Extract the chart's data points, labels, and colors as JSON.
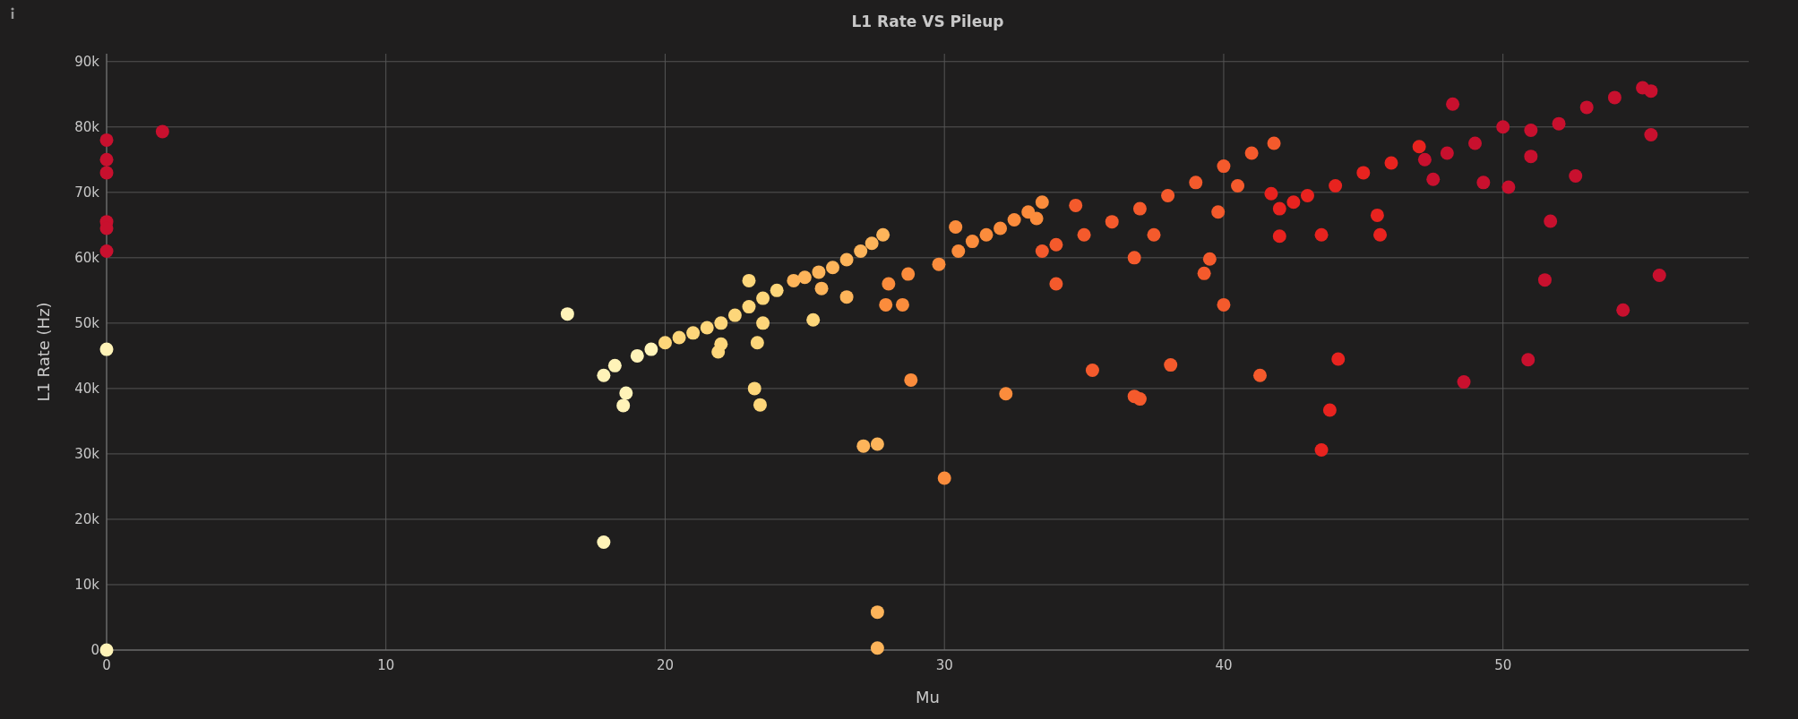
{
  "chart_data": {
    "type": "scatter",
    "title": "L1 Rate VS Pileup",
    "xlabel": "Mu",
    "ylabel": "L1 Rate (Hz)",
    "xlim": [
      0,
      58.8
    ],
    "xticks": [
      0,
      10,
      20,
      30,
      40,
      50
    ],
    "ylim": [
      0,
      91200
    ],
    "yticks": [
      0,
      {
        "value": 10000,
        "label": "10k"
      },
      {
        "value": 20000,
        "label": "20k"
      },
      {
        "value": 30000,
        "label": "30k"
      },
      {
        "value": 40000,
        "label": "40k"
      },
      {
        "value": 50000,
        "label": "50k"
      },
      {
        "value": 60000,
        "label": "60k"
      },
      {
        "value": 70000,
        "label": "70k"
      },
      {
        "value": 80000,
        "label": "80k"
      },
      {
        "value": 90000,
        "label": "90k"
      }
    ],
    "grid": true,
    "marker": "circle",
    "series": [
      {
        "color": "#fff3b8",
        "x": [
          0,
          0,
          16.5,
          17.8,
          17.8,
          18.2,
          18.6,
          18.5,
          19,
          19.5
        ],
        "values": [
          46000,
          0,
          51400,
          16500,
          42000,
          43500,
          39300,
          37400,
          45000,
          46000
        ]
      },
      {
        "color": "#fdd67a",
        "x": [
          20,
          20.5,
          21,
          21.5,
          22,
          22.5,
          23,
          23.5,
          24,
          21.9,
          22,
          23.2,
          23.4,
          23.3,
          23.5,
          23,
          25.3
        ],
        "values": [
          47000,
          47800,
          48500,
          49300,
          50000,
          51200,
          52500,
          53800,
          55000,
          45600,
          46800,
          40000,
          37500,
          47000,
          50000,
          56500,
          50500
        ]
      },
      {
        "color": "#fdb45a",
        "x": [
          24.6,
          25,
          25.5,
          26,
          26.5,
          27,
          27.4,
          27.8,
          27.1,
          27.6,
          27.6,
          27.6,
          26.5,
          25.6
        ],
        "values": [
          56500,
          57000,
          57800,
          58500,
          59700,
          61000,
          62200,
          63500,
          31200,
          31500,
          5800,
          300,
          54000,
          55300
        ]
      },
      {
        "color": "#fb8c3c",
        "x": [
          28,
          28.7,
          29.8,
          30.5,
          31,
          31.5,
          32,
          32.5,
          33,
          33.5,
          27.9,
          28.5,
          28.8,
          30,
          32.2,
          30.4,
          33.3
        ],
        "values": [
          56000,
          57500,
          59000,
          61000,
          62500,
          63500,
          64500,
          65800,
          67000,
          68500,
          52800,
          52800,
          41300,
          26300,
          39200,
          64700,
          66000
        ]
      },
      {
        "color": "#f45a2c",
        "x": [
          33.5,
          34,
          35,
          36,
          37,
          38,
          39,
          40,
          41,
          41.8,
          34,
          35.3,
          36.8,
          37,
          38.1,
          39.3,
          39.5,
          40,
          41.3,
          34.7,
          37.5,
          39.8,
          36.8,
          40.5
        ],
        "values": [
          61000,
          62000,
          63500,
          65500,
          67500,
          69500,
          71500,
          74000,
          76000,
          77500,
          56000,
          42800,
          38800,
          38400,
          43600,
          57600,
          59800,
          52800,
          42000,
          68000,
          63500,
          67000,
          60000,
          71000
        ]
      },
      {
        "color": "#e8231f",
        "x": [
          42,
          42.5,
          43,
          44,
          45,
          46,
          47,
          43.5,
          43.8,
          44.1,
          42,
          43.5,
          45.6,
          45.5,
          41.7
        ],
        "values": [
          67500,
          68500,
          69500,
          71000,
          73000,
          74500,
          77000,
          30600,
          36700,
          44500,
          63300,
          63500,
          63500,
          66500,
          69800
        ]
      },
      {
        "color": "#c8102e",
        "x": [
          47.2,
          48,
          49,
          50,
          51,
          52,
          53,
          54,
          55,
          55.3,
          0,
          0,
          0,
          0,
          0,
          0,
          2,
          48.2,
          48.6,
          50.9,
          51.5,
          51.7,
          54.3,
          55.6,
          55.3,
          52.6,
          49.3,
          50.2,
          51,
          47.5
        ],
        "values": [
          75000,
          76000,
          77500,
          80000,
          79500,
          80500,
          83000,
          84500,
          86000,
          85500,
          78000,
          75000,
          73000,
          65500,
          64500,
          61000,
          79300,
          83500,
          41000,
          44400,
          56600,
          65600,
          52000,
          57300,
          78800,
          72500,
          71500,
          70800,
          75500,
          72000
        ]
      }
    ]
  }
}
